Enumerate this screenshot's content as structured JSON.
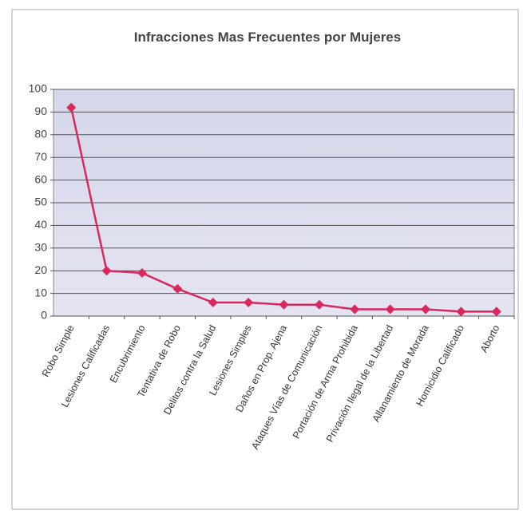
{
  "chart_data": {
    "type": "line",
    "title": "Infracciones Mas Frecuentes por Mujeres",
    "categories": [
      "Robo Simple",
      "Lesiones Calificadas",
      "Encubrimiento",
      "Tentativa de Robo",
      "Delitos contra la Salud",
      "Lesiones Simples",
      "Daños en Prop. Ajena",
      "Ataques Vías de Comunicación",
      "Portación de Arma Prohibida",
      "Privación Ilegal de la Libertad",
      "Allanamiento de Morada",
      "Homicidio Calificado",
      "Aborto"
    ],
    "values": [
      92,
      20,
      19,
      12,
      6,
      6,
      5,
      5,
      3,
      3,
      3,
      2,
      2
    ],
    "color": "#d8285c",
    "ylim": [
      0,
      100
    ],
    "yticks": [
      0,
      10,
      20,
      30,
      40,
      50,
      60,
      70,
      80,
      90,
      100
    ],
    "grid": true
  }
}
